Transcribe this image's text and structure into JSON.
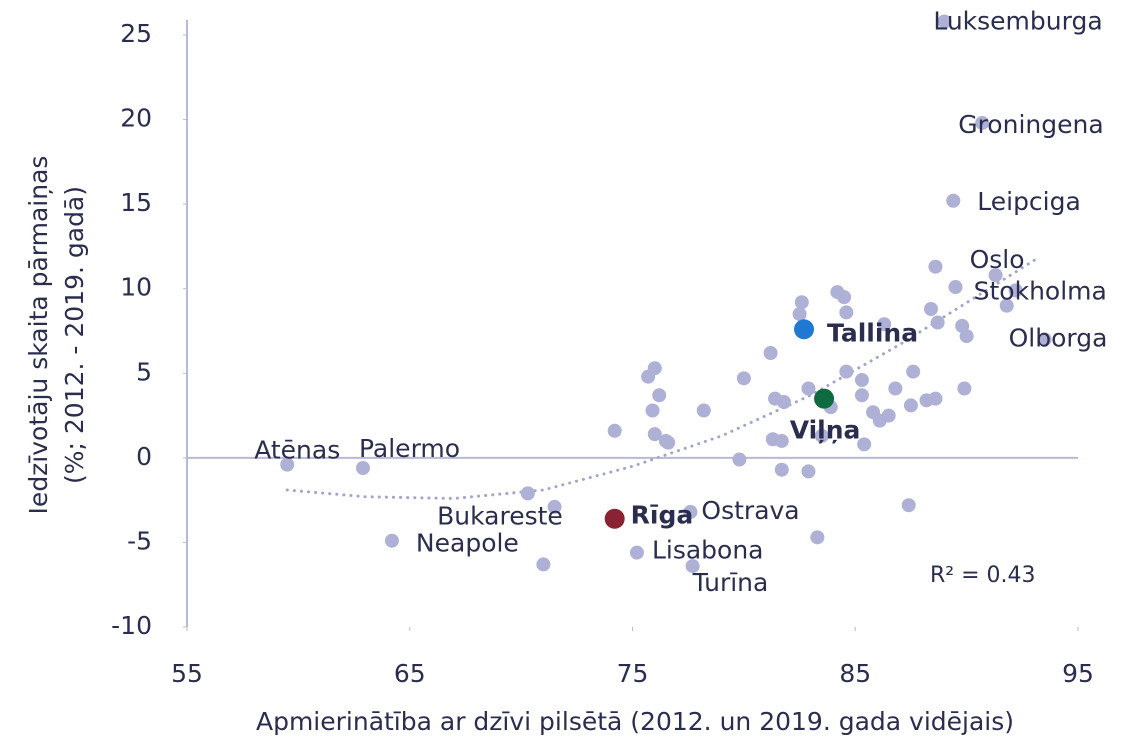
{
  "chart_data": {
    "type": "scatter",
    "xlabel": "Apmierinātība ar dzīvi pilsētā (2012. un 2019. gada vidējais)",
    "ylabel": [
      "Iedzīvotāju skaita pārmaiņas",
      "(%; 2012. - 2019. gadā)"
    ],
    "xlim": [
      55,
      95
    ],
    "xticks": [
      55,
      65,
      75,
      85,
      95
    ],
    "ylim": [
      -10,
      25
    ],
    "yticks": [
      -10,
      -5,
      0,
      5,
      10,
      15,
      20,
      25
    ],
    "annotation": "R² = 0.43",
    "series": [
      {
        "color": "#aeb0d6",
        "x": [
          59.5,
          62.9,
          64.2,
          70.3,
          71.5,
          71.0,
          74.2,
          75.2,
          77.6,
          77.7,
          75.7,
          76.0,
          76.2,
          75.9,
          76.0,
          76.5,
          76.6,
          78.2,
          80.0,
          79.8,
          81.2,
          81.4,
          81.8,
          81.3,
          81.7,
          81.7,
          82.9,
          83.3,
          82.6,
          82.5,
          84.2,
          84.5,
          84.6,
          82.9,
          83.9,
          84.6,
          85.3,
          85.3,
          83.5,
          85.4,
          85.8,
          86.1,
          86.5,
          86.3,
          86.8,
          87.6,
          87.5,
          88.2,
          88.6,
          87.4,
          88.4,
          88.7,
          88.6,
          89.4,
          89.0,
          90.7,
          89.5,
          89.8,
          90.0,
          89.9,
          91.3,
          92.2,
          91.8,
          93.5
        ],
        "y": [
          -0.4,
          -0.6,
          -4.9,
          -2.1,
          -2.9,
          -6.3,
          1.6,
          -5.6,
          -3.2,
          -6.4,
          4.8,
          5.3,
          3.7,
          2.8,
          1.4,
          1.0,
          0.9,
          2.8,
          4.7,
          -0.1,
          6.2,
          3.5,
          3.3,
          1.1,
          1.0,
          -0.7,
          -0.8,
          -4.7,
          9.2,
          8.5,
          9.8,
          9.5,
          8.6,
          4.1,
          3.0,
          5.1,
          4.6,
          3.7,
          1.3,
          0.8,
          2.7,
          2.2,
          2.5,
          7.9,
          4.1,
          5.1,
          3.1,
          3.4,
          3.5,
          -2.8,
          8.8,
          8.0,
          11.3,
          15.2,
          25.8,
          19.8,
          10.1,
          7.8,
          7.2,
          4.1,
          10.8,
          9.9,
          9.0,
          7.0
        ],
        "labels": [
          "Atēnas",
          "Palermo",
          "Neapole",
          "Bukareste",
          null,
          null,
          null,
          "Lisabona",
          "Ostrava",
          "Turīna",
          null,
          null,
          null,
          null,
          null,
          null,
          null,
          null,
          null,
          null,
          null,
          null,
          null,
          null,
          null,
          null,
          null,
          null,
          null,
          null,
          null,
          null,
          null,
          null,
          null,
          null,
          null,
          null,
          null,
          null,
          null,
          null,
          null,
          null,
          null,
          null,
          null,
          null,
          null,
          null,
          null,
          null,
          null,
          "Leipciga",
          "Luksemburga",
          "Groningena",
          null,
          null,
          null,
          null,
          "Oslo",
          "Stokholma",
          null,
          "Olborga"
        ]
      },
      {
        "color": "#1f78d1",
        "x": [
          82.7
        ],
        "y": [
          7.6
        ],
        "labels": [
          "Tallina"
        ]
      },
      {
        "color": "#0e6b3f",
        "x": [
          83.6
        ],
        "y": [
          3.5
        ],
        "labels": [
          "Viļņa"
        ]
      },
      {
        "color": "#8b2233",
        "x": [
          74.2
        ],
        "y": [
          -3.6
        ],
        "labels": [
          "Rīga"
        ]
      }
    ],
    "trendline": {
      "color": "#a3a4cc",
      "x": [
        59.5,
        63,
        67,
        71,
        75,
        79,
        83,
        87,
        91,
        93.3
      ],
      "y": [
        -1.9,
        -2.3,
        -2.4,
        -1.9,
        -0.5,
        1.3,
        3.7,
        6.7,
        10.0,
        11.9
      ]
    }
  }
}
